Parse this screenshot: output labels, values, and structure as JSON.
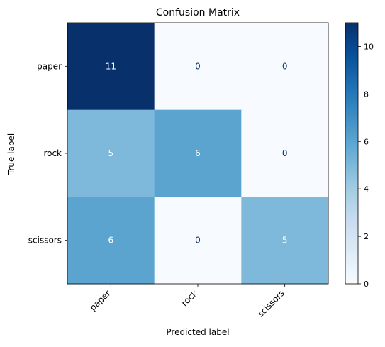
{
  "chart_data": {
    "type": "heatmap",
    "title": "Confusion Matrix",
    "xlabel": "Predicted label",
    "ylabel": "True label",
    "x_categories": [
      "paper",
      "rock",
      "scissors"
    ],
    "y_categories": [
      "paper",
      "rock",
      "scissors"
    ],
    "values": [
      [
        11,
        0,
        0
      ],
      [
        5,
        6,
        0
      ],
      [
        6,
        0,
        5
      ]
    ],
    "colormap": "Blues",
    "colorbar": {
      "range": [
        0,
        11
      ],
      "ticks": [
        0,
        2,
        4,
        6,
        8,
        10
      ]
    },
    "grid": false,
    "x_tick_rotation_deg": 45
  }
}
